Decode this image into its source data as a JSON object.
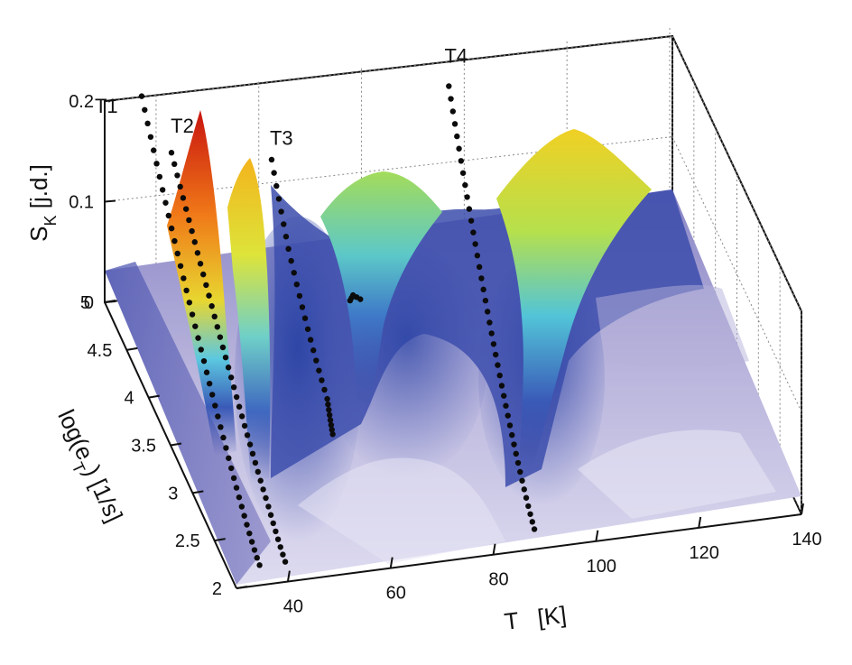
{
  "chart_data": {
    "type": "surface3d",
    "xlabel": "T   [K]",
    "ylabel": "log(e_T) [1/s]",
    "zlabel": "S_K  [j.d.]",
    "x_ticks": [
      "40",
      "60",
      "80",
      "100",
      "120",
      "140"
    ],
    "y_ticks": [
      "2",
      "2.5",
      "3",
      "3.5",
      "4",
      "4.5",
      "5"
    ],
    "z_ticks": [
      "0",
      "0.1",
      "0.2"
    ],
    "xlim": [
      30,
      140
    ],
    "ylim": [
      2,
      5
    ],
    "zlim": [
      0,
      0.2
    ],
    "grid": true,
    "colormap": [
      "#ecebf5",
      "#c9c6e3",
      "#8f8ccc",
      "#4a56b0",
      "#2f47a8",
      "#3fa9e0",
      "#7fd7c0",
      "#d9e63a",
      "#f3c21c",
      "#f07818",
      "#d81a14"
    ],
    "peaks": [
      {
        "label": "T1",
        "T": 37,
        "S": 0.2
      },
      {
        "label": "T2",
        "T": 43,
        "S": 0.14
      },
      {
        "label": "T3",
        "T": 63,
        "S": 0.12
      },
      {
        "label": "T4",
        "T": 97,
        "S": 0.17
      }
    ],
    "ridges": [
      {
        "name": "T1",
        "points": [
          [
            34.5,
            2.0
          ],
          [
            35.3,
            2.5
          ],
          [
            36.0,
            3.0
          ],
          [
            36.5,
            3.5
          ],
          [
            36.8,
            4.0
          ],
          [
            37.0,
            4.5
          ],
          [
            37.2,
            5.0
          ]
        ]
      },
      {
        "name": "T2",
        "points": [
          [
            39.5,
            2.0
          ],
          [
            40.5,
            2.5
          ],
          [
            41.2,
            3.0
          ],
          [
            41.8,
            3.5
          ],
          [
            42.3,
            4.0
          ],
          [
            42.7,
            4.5
          ],
          [
            43.0,
            5.0
          ]
        ]
      },
      {
        "name": "T3",
        "points": [
          [
            59.0,
            3.2
          ],
          [
            60.5,
            3.5
          ],
          [
            61.0,
            4.0
          ],
          [
            61.5,
            4.5
          ],
          [
            62.5,
            5.0
          ]
        ]
      },
      {
        "name": "T4",
        "points": [
          [
            88.0,
            2.0
          ],
          [
            89.5,
            2.5
          ],
          [
            91.0,
            3.0
          ],
          [
            92.5,
            3.5
          ],
          [
            94.0,
            4.0
          ],
          [
            95.5,
            4.5
          ],
          [
            97.0,
            5.0
          ]
        ]
      },
      {
        "name": "",
        "points": [
          [
            73.5,
            4.5
          ],
          [
            74.5,
            4.55
          ],
          [
            75.5,
            4.5
          ]
        ]
      }
    ]
  }
}
